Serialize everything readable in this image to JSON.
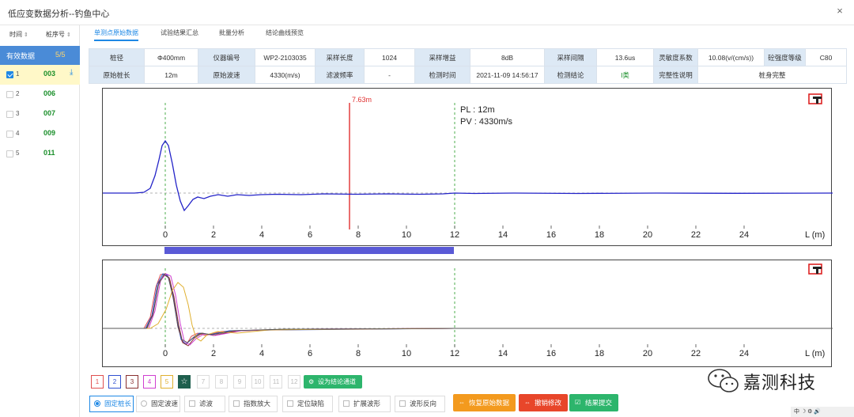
{
  "window": {
    "title": "低应变数据分析--钓鱼中心",
    "close_label": "×"
  },
  "left_panel": {
    "col_time": "时间",
    "col_pile_no": "桩序号",
    "sort_arrow": "⇕",
    "valid_label": "有效数据",
    "valid_count": "5/5",
    "rows": [
      {
        "idx": "1",
        "pile": "003",
        "selected": true
      },
      {
        "idx": "2",
        "pile": "006",
        "selected": false
      },
      {
        "idx": "3",
        "pile": "007",
        "selected": false
      },
      {
        "idx": "4",
        "pile": "009",
        "selected": false
      },
      {
        "idx": "5",
        "pile": "011",
        "selected": false
      }
    ]
  },
  "tabs": [
    {
      "label": "单测点原始数据",
      "active": true
    },
    {
      "label": "试验结果汇总",
      "active": false
    },
    {
      "label": "批量分析",
      "active": false
    },
    {
      "label": "结论曲线预览",
      "active": false
    }
  ],
  "info": {
    "row1": [
      {
        "k": "桩径",
        "v": "Φ400mm"
      },
      {
        "k": "仪器编号",
        "v": "WP2-2103035"
      },
      {
        "k": "采样长度",
        "v": "1024"
      },
      {
        "k": "采样增益",
        "v": "8dB"
      },
      {
        "k": "采样间隔",
        "v": "13.6us"
      },
      {
        "k": "灵敏度系数",
        "v": "10.08(v/(cm/s))"
      },
      {
        "k": "砼强度等级",
        "v": "C80"
      }
    ],
    "row2": [
      {
        "k": "原始桩长",
        "v": "12m"
      },
      {
        "k": "原始波速",
        "v": "4330(m/s)"
      },
      {
        "k": "滤波频率",
        "v": "-"
      },
      {
        "k": "检测时间",
        "v": "2021-11-09 14:56:17"
      },
      {
        "k": "检测结论",
        "v": "I类"
      },
      {
        "k": "完整性说明",
        "v": "桩身完整"
      }
    ]
  },
  "plot_top": {
    "marker_label": "7.63m",
    "pl_label": "PL : 12m",
    "pv_label": "PV : 4330m/s",
    "ticks": [
      "0",
      "2",
      "4",
      "6",
      "8",
      "10",
      "12",
      "14",
      "16",
      "18",
      "20",
      "22",
      "24"
    ],
    "axis_unit": "L (m)"
  },
  "plot_bottom": {
    "ticks": [
      "0",
      "2",
      "4",
      "6",
      "8",
      "10",
      "12",
      "14",
      "16",
      "18",
      "20",
      "22",
      "24"
    ],
    "axis_unit": "L (m)"
  },
  "channels": [
    {
      "label": "1",
      "color": "#e05050",
      "enabled": true
    },
    {
      "label": "2",
      "color": "#3050d0",
      "enabled": true
    },
    {
      "label": "3",
      "color": "#8a3030",
      "enabled": true
    },
    {
      "label": "4",
      "color": "#d040d0",
      "enabled": true
    },
    {
      "label": "5",
      "color": "#e0b030",
      "enabled": true
    },
    {
      "label": "☆",
      "color": "#1f5f4e",
      "enabled": true
    },
    {
      "label": "7",
      "enabled": false
    },
    {
      "label": "8",
      "enabled": false
    },
    {
      "label": "9",
      "enabled": false
    },
    {
      "label": "10",
      "enabled": false
    },
    {
      "label": "11",
      "enabled": false
    },
    {
      "label": "12",
      "enabled": false
    }
  ],
  "set_channel_label": "设为结论通道",
  "options": [
    {
      "label": "固定桩长",
      "type": "radio",
      "checked": true
    },
    {
      "label": "固定波速",
      "type": "radio",
      "checked": false
    },
    {
      "label": "滤波",
      "type": "check"
    },
    {
      "label": "指数放大",
      "type": "check"
    },
    {
      "label": "定位缺陷",
      "type": "check"
    },
    {
      "label": "扩展波形",
      "type": "check"
    },
    {
      "label": "波形反向",
      "type": "check"
    }
  ],
  "actions": {
    "restore": "恢复原始数据",
    "undo": "撤销修改",
    "submit": "结果提交"
  },
  "colors": {
    "accent": "#1e88e5",
    "restore": "#f39a1e",
    "undo": "#e8462a",
    "submit": "#2db56c",
    "main_wave": "#2323c8"
  },
  "watermark": "嘉测科技",
  "taskbar": "中 ☽ ⚙ 🔊"
}
